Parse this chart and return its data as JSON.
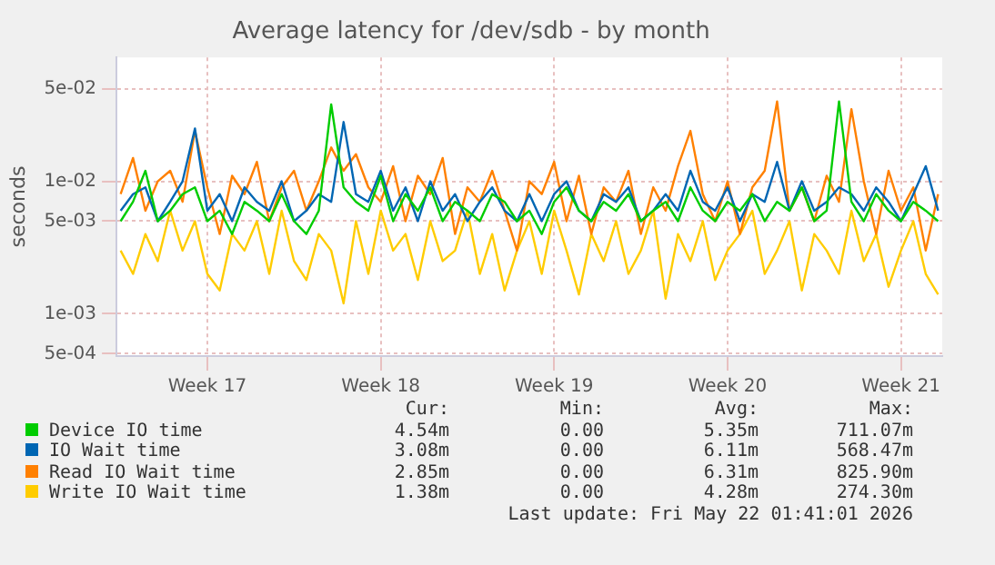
{
  "chart_data": {
    "type": "line",
    "title": "Average latency for /dev/sdb - by month",
    "ylabel": "seconds",
    "log": "y",
    "grid": true,
    "legend": "bottom",
    "marker": "none",
    "line_style": "solid",
    "xlim": [
      "2026-04-19T20:00",
      "2026-05-23T04:00"
    ],
    "xticks": [
      {
        "value": "2026-04-23T12:00",
        "label": "Week 17"
      },
      {
        "value": "2026-04-30T12:00",
        "label": "Week 18"
      },
      {
        "value": "2026-05-07T12:00",
        "label": "Week 19"
      },
      {
        "value": "2026-05-14T12:00",
        "label": "Week 20"
      },
      {
        "value": "2026-05-21T12:00",
        "label": "Week 21"
      }
    ],
    "ylim": [
      0.00048,
      0.086
    ],
    "yticks": [
      {
        "value": 0.0005,
        "label": "5e-04"
      },
      {
        "value": 0.001,
        "label": "1e-03"
      },
      {
        "value": 0.005,
        "label": "5e-03"
      },
      {
        "value": 0.01,
        "label": "1e-02"
      },
      {
        "value": 0.05,
        "label": "5e-02"
      }
    ],
    "x": [
      "2026-04-20T00:00",
      "2026-04-20T12:00",
      "2026-04-21T00:00",
      "2026-04-21T12:00",
      "2026-04-22T00:00",
      "2026-04-22T12:00",
      "2026-04-23T00:00",
      "2026-04-23T12:00",
      "2026-04-24T00:00",
      "2026-04-24T12:00",
      "2026-04-25T00:00",
      "2026-04-25T12:00",
      "2026-04-26T00:00",
      "2026-04-26T12:00",
      "2026-04-27T00:00",
      "2026-04-27T12:00",
      "2026-04-28T00:00",
      "2026-04-28T12:00",
      "2026-04-29T00:00",
      "2026-04-29T12:00",
      "2026-04-30T00:00",
      "2026-04-30T12:00",
      "2026-05-01T00:00",
      "2026-05-01T12:00",
      "2026-05-02T00:00",
      "2026-05-02T12:00",
      "2026-05-03T00:00",
      "2026-05-03T12:00",
      "2026-05-04T00:00",
      "2026-05-04T12:00",
      "2026-05-05T00:00",
      "2026-05-05T12:00",
      "2026-05-06T00:00",
      "2026-05-06T12:00",
      "2026-05-07T00:00",
      "2026-05-07T12:00",
      "2026-05-08T00:00",
      "2026-05-08T12:00",
      "2026-05-09T00:00",
      "2026-05-09T12:00",
      "2026-05-10T00:00",
      "2026-05-10T12:00",
      "2026-05-11T00:00",
      "2026-05-11T12:00",
      "2026-05-12T00:00",
      "2026-05-12T12:00",
      "2026-05-13T00:00",
      "2026-05-13T12:00",
      "2026-05-14T00:00",
      "2026-05-14T12:00",
      "2026-05-15T00:00",
      "2026-05-15T12:00",
      "2026-05-16T00:00",
      "2026-05-16T12:00",
      "2026-05-17T00:00",
      "2026-05-17T12:00",
      "2026-05-18T00:00",
      "2026-05-18T12:00",
      "2026-05-19T00:00",
      "2026-05-19T12:00",
      "2026-05-20T00:00",
      "2026-05-20T12:00",
      "2026-05-21T00:00",
      "2026-05-21T12:00",
      "2026-05-22T00:00",
      "2026-05-22T12:00",
      "2026-05-23T00:00"
    ],
    "series": [
      {
        "name": "Device IO time",
        "color": "#00cc00",
        "values": [
          0.005,
          0.007,
          0.012,
          0.005,
          0.006,
          0.008,
          0.009,
          0.005,
          0.006,
          0.004,
          0.007,
          0.006,
          0.005,
          0.008,
          0.005,
          0.004,
          0.006,
          0.038,
          0.009,
          0.007,
          0.006,
          0.011,
          0.005,
          0.008,
          0.006,
          0.009,
          0.005,
          0.007,
          0.006,
          0.005,
          0.008,
          0.007,
          0.005,
          0.006,
          0.004,
          0.007,
          0.009,
          0.006,
          0.005,
          0.007,
          0.006,
          0.008,
          0.005,
          0.006,
          0.007,
          0.005,
          0.009,
          0.006,
          0.005,
          0.007,
          0.006,
          0.008,
          0.005,
          0.007,
          0.006,
          0.009,
          0.005,
          0.006,
          0.04,
          0.007,
          0.005,
          0.008,
          0.006,
          0.005,
          0.007,
          0.006,
          0.005
        ]
      },
      {
        "name": "IO Wait time",
        "color": "#0066b3",
        "values": [
          0.006,
          0.008,
          0.009,
          0.005,
          0.007,
          0.01,
          0.025,
          0.006,
          0.008,
          0.005,
          0.009,
          0.007,
          0.006,
          0.01,
          0.005,
          0.006,
          0.008,
          0.007,
          0.028,
          0.008,
          0.007,
          0.012,
          0.006,
          0.009,
          0.005,
          0.01,
          0.006,
          0.008,
          0.005,
          0.007,
          0.009,
          0.006,
          0.005,
          0.008,
          0.005,
          0.008,
          0.01,
          0.006,
          0.005,
          0.008,
          0.007,
          0.009,
          0.005,
          0.006,
          0.008,
          0.006,
          0.012,
          0.007,
          0.006,
          0.009,
          0.005,
          0.008,
          0.007,
          0.014,
          0.006,
          0.01,
          0.006,
          0.007,
          0.009,
          0.008,
          0.006,
          0.009,
          0.007,
          0.005,
          0.008,
          0.013,
          0.006
        ]
      },
      {
        "name": "Read IO Wait time",
        "color": "#ff8000",
        "values": [
          0.008,
          0.015,
          0.006,
          0.01,
          0.012,
          0.007,
          0.024,
          0.009,
          0.004,
          0.011,
          0.008,
          0.014,
          0.005,
          0.009,
          0.012,
          0.006,
          0.01,
          0.018,
          0.012,
          0.016,
          0.009,
          0.007,
          0.013,
          0.005,
          0.011,
          0.008,
          0.015,
          0.004,
          0.009,
          0.007,
          0.012,
          0.006,
          0.003,
          0.01,
          0.008,
          0.014,
          0.005,
          0.011,
          0.004,
          0.009,
          0.007,
          0.012,
          0.004,
          0.009,
          0.006,
          0.013,
          0.024,
          0.008,
          0.005,
          0.01,
          0.004,
          0.009,
          0.012,
          0.04,
          0.006,
          0.009,
          0.005,
          0.011,
          0.007,
          0.035,
          0.01,
          0.004,
          0.012,
          0.006,
          0.009,
          0.003,
          0.008
        ]
      },
      {
        "name": "Write IO Wait time",
        "color": "#ffcc00",
        "values": [
          0.003,
          0.002,
          0.004,
          0.0025,
          0.006,
          0.003,
          0.005,
          0.002,
          0.0015,
          0.004,
          0.003,
          0.005,
          0.002,
          0.006,
          0.0025,
          0.0018,
          0.004,
          0.003,
          0.0012,
          0.005,
          0.002,
          0.006,
          0.003,
          0.004,
          0.0018,
          0.005,
          0.0025,
          0.003,
          0.006,
          0.002,
          0.004,
          0.0015,
          0.003,
          0.005,
          0.002,
          0.006,
          0.003,
          0.0014,
          0.004,
          0.0025,
          0.005,
          0.002,
          0.003,
          0.006,
          0.0013,
          0.004,
          0.0025,
          0.005,
          0.0018,
          0.003,
          0.004,
          0.006,
          0.002,
          0.003,
          0.005,
          0.0015,
          0.004,
          0.003,
          0.002,
          0.006,
          0.0025,
          0.004,
          0.0016,
          0.003,
          0.005,
          0.002,
          0.0014
        ]
      }
    ],
    "annotations": [
      "Cur:",
      "Min:",
      "Avg:",
      "Max:",
      "4.54m",
      "0.00",
      "5.35m",
      "711.07m",
      "3.08m",
      "0.00",
      "6.11m",
      "568.47m",
      "2.85m",
      "0.00",
      "6.31m",
      "825.90m",
      "1.38m",
      "0.00",
      "4.28m",
      "274.30m",
      "Last update: Fri May 22 01:41:01 2026"
    ]
  }
}
